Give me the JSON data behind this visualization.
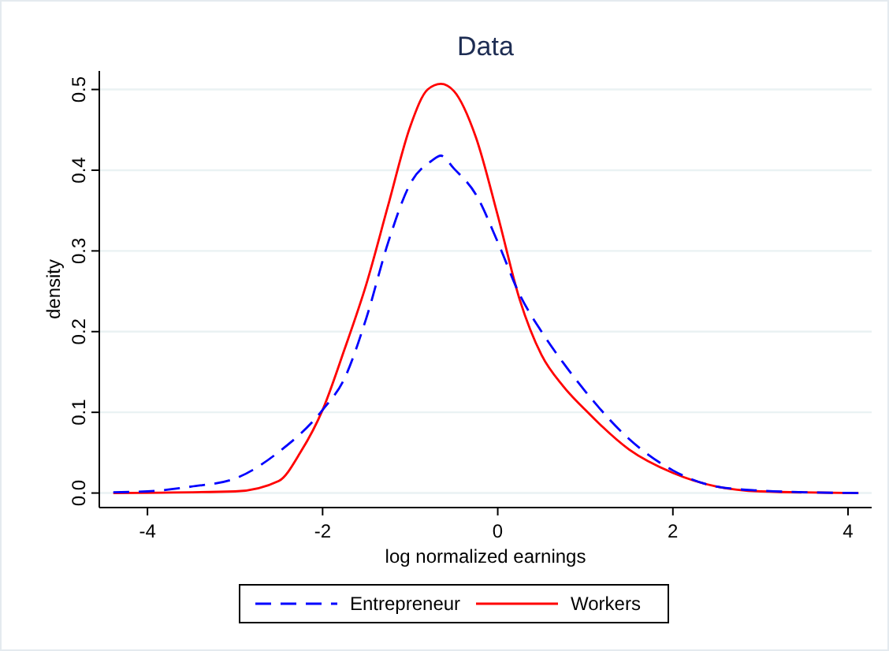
{
  "chart_data": {
    "type": "line",
    "title": "Data",
    "xlabel": "log normalized earnings",
    "ylabel": "density",
    "xlim": [
      -4.55,
      4.27
    ],
    "xticks": [
      -4,
      -2,
      0,
      2,
      4
    ],
    "ylim": [
      -0.018,
      0.523
    ],
    "yticks": [
      {
        "value": 0,
        "label": "0.0"
      },
      {
        "value": 0.1,
        "label": "0.1"
      },
      {
        "value": 0.2,
        "label": "0.2"
      },
      {
        "value": 0.3,
        "label": "0.3"
      },
      {
        "value": 0.4,
        "label": "0.4"
      },
      {
        "value": 0.5,
        "label": "0.5"
      }
    ],
    "grid": "y",
    "legend": "bottom",
    "marker": "none",
    "series": [
      {
        "name": "Entrepreneur",
        "color": "#0000ff",
        "line_style": "dashed",
        "x": [
          -4.39,
          -4,
          -3.5,
          -3,
          -2.5,
          -2,
          -1.75,
          -1.5,
          -1.25,
          -1,
          -0.75,
          -0.65,
          -0.5,
          -0.25,
          0,
          0.25,
          0.5,
          0.75,
          1,
          1.5,
          2,
          2.5,
          3,
          3.5,
          4.12
        ],
        "values": [
          0.001,
          0.002,
          0.008,
          0.018,
          0.051,
          0.103,
          0.142,
          0.217,
          0.311,
          0.383,
          0.412,
          0.418,
          0.402,
          0.37,
          0.311,
          0.246,
          0.2,
          0.161,
          0.126,
          0.067,
          0.028,
          0.008,
          0.003,
          0.001,
          0
        ]
      },
      {
        "name": "Workers",
        "color": "#ff0000",
        "line_style": "solid",
        "x": [
          -4.39,
          -3,
          -2.5,
          -2.25,
          -2,
          -1.75,
          -1.5,
          -1.25,
          -1,
          -0.8,
          -0.65,
          -0.5,
          -0.25,
          0,
          0.25,
          0.5,
          0.75,
          1,
          1.5,
          2,
          2.5,
          3,
          4.12
        ],
        "values": [
          0,
          0.002,
          0.015,
          0.051,
          0.103,
          0.178,
          0.259,
          0.357,
          0.454,
          0.5,
          0.507,
          0.498,
          0.441,
          0.344,
          0.24,
          0.171,
          0.132,
          0.103,
          0.054,
          0.025,
          0.008,
          0.002,
          0
        ]
      }
    ]
  }
}
